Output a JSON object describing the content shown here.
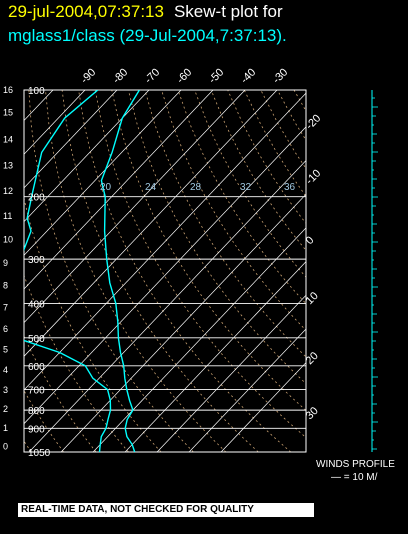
{
  "header": {
    "date_time": "29-jul-2004,07:37:13",
    "plot_title": "Skew-t plot for",
    "subtitle": "mglass1/class (29-Jul-2004,7:37:13)."
  },
  "winds": {
    "label": "WINDS PROFILE",
    "scale": "— = 10 M/"
  },
  "disclaimer": "REAL-TIME DATA, NOT CHECKED FOR QUALITY",
  "colors": {
    "date": "#ffff00",
    "subtitle": "#00ffff",
    "trace": "#00ffff",
    "grid": "#ffffff",
    "adiabat": "#c8a070"
  },
  "chart_data": {
    "type": "skew-t",
    "pressure_ticks": [
      "100",
      "200",
      "300",
      "400",
      "500",
      "600",
      "700",
      "800",
      "900",
      "1050"
    ],
    "pressure_values": [
      100,
      200,
      300,
      400,
      500,
      600,
      700,
      800,
      900,
      1050
    ],
    "height_ticks": [
      "16",
      "15",
      "14",
      "13",
      "12",
      "11",
      "10",
      "9",
      "8",
      "7",
      "6",
      "5",
      "4",
      "3",
      "2",
      "1",
      "0"
    ],
    "height_values": [
      16,
      15,
      14,
      13,
      12,
      11,
      10,
      9,
      8,
      7,
      6,
      5,
      4,
      3,
      2,
      1,
      0
    ],
    "temperature_ticks": [
      "-90",
      "-80",
      "-70",
      "-60",
      "-50",
      "-40",
      "-30"
    ],
    "temperature_values": [
      -90,
      -80,
      -70,
      -60,
      -50,
      -40,
      -30
    ],
    "right_ticks": [
      "-20",
      "-10",
      "0",
      "10",
      "20",
      "30"
    ],
    "right_values": [
      -20,
      -10,
      0,
      10,
      20,
      30
    ],
    "mixing_ratio_labels": [
      "20",
      "24",
      "28",
      "32",
      "36"
    ],
    "temperature_profile": [
      {
        "p": 1050,
        "t": 33
      },
      {
        "p": 1000,
        "t": 30
      },
      {
        "p": 950,
        "t": 26
      },
      {
        "p": 900,
        "t": 23
      },
      {
        "p": 850,
        "t": 21
      },
      {
        "p": 800,
        "t": 20
      },
      {
        "p": 750,
        "t": 16
      },
      {
        "p": 700,
        "t": 12
      },
      {
        "p": 650,
        "t": 8
      },
      {
        "p": 600,
        "t": 4
      },
      {
        "p": 550,
        "t": -1
      },
      {
        "p": 500,
        "t": -6
      },
      {
        "p": 450,
        "t": -11
      },
      {
        "p": 400,
        "t": -17
      },
      {
        "p": 350,
        "t": -25
      },
      {
        "p": 300,
        "t": -33
      },
      {
        "p": 250,
        "t": -42
      },
      {
        "p": 200,
        "t": -52
      },
      {
        "p": 180,
        "t": -58
      },
      {
        "p": 150,
        "t": -63
      },
      {
        "p": 120,
        "t": -70
      },
      {
        "p": 100,
        "t": -73
      }
    ],
    "dewpoint_profile": [
      {
        "p": 1050,
        "t": 22
      },
      {
        "p": 1000,
        "t": 20
      },
      {
        "p": 950,
        "t": 18
      },
      {
        "p": 900,
        "t": 17
      },
      {
        "p": 850,
        "t": 15
      },
      {
        "p": 800,
        "t": 13
      },
      {
        "p": 750,
        "t": 10
      },
      {
        "p": 700,
        "t": 6
      },
      {
        "p": 650,
        "t": -2
      },
      {
        "p": 600,
        "t": -8
      },
      {
        "p": 550,
        "t": -20
      },
      {
        "p": 500,
        "t": -38
      },
      {
        "p": 450,
        "t": -44
      },
      {
        "p": 400,
        "t": -50
      },
      {
        "p": 350,
        "t": -55
      },
      {
        "p": 300,
        "t": -60
      },
      {
        "p": 250,
        "t": -65
      },
      {
        "p": 230,
        "t": -70
      },
      {
        "p": 200,
        "t": -75
      },
      {
        "p": 150,
        "t": -85
      },
      {
        "p": 120,
        "t": -88
      },
      {
        "p": 100,
        "t": -86
      }
    ]
  }
}
